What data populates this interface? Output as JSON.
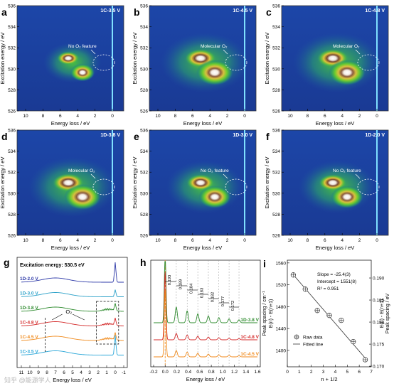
{
  "maps": [
    {
      "letter": "a",
      "title": "1C-3.5 V",
      "annotation": "No O₂ feature",
      "intensity": "weak"
    },
    {
      "letter": "b",
      "title": "1C-4.5 V",
      "annotation": "Molecular O₂",
      "intensity": "strong"
    },
    {
      "letter": "c",
      "title": "1C-4.8 V",
      "annotation": "Molecular O₂",
      "intensity": "strong"
    },
    {
      "letter": "d",
      "title": "1D-3.8 V",
      "annotation": "Molecular  O₂",
      "intensity": "strong"
    },
    {
      "letter": "e",
      "title": "1D-3.0 V",
      "annotation": "No O₂ feature",
      "intensity": "medium"
    },
    {
      "letter": "f",
      "title": "1D-2.0 V",
      "annotation": "No O₂ feature",
      "intensity": "medium"
    }
  ],
  "map_axes": {
    "ylabel": "Excitation energy / eV",
    "xlabel": "Energy loss / eV",
    "yticks": [
      "536",
      "534",
      "532",
      "530",
      "528",
      "526"
    ],
    "xticks": [
      "10",
      "8",
      "6",
      "4",
      "2",
      "0"
    ]
  },
  "panel_g": {
    "letter": "g",
    "title": "Excitation energy: 530.5 eV",
    "traces": [
      {
        "label": "1D-2.0 V",
        "color": "#2e3aa8"
      },
      {
        "label": "1D-3.0 V",
        "color": "#2aa0c8"
      },
      {
        "label": "1D-3.8 V",
        "color": "#2e8b2e"
      },
      {
        "label": "1C-4.8 V",
        "color": "#d42a2a"
      },
      {
        "label": "1C-4.5 V",
        "color": "#f08a1c"
      },
      {
        "label": "1C-3.5 V",
        "color": "#29a6d8"
      }
    ],
    "annotation": "O₂",
    "xlabel": "Energy loss / eV",
    "xticks": [
      "11",
      "10",
      "9",
      "8",
      "7",
      "6",
      "5",
      "4",
      "3",
      "2",
      "1",
      "0",
      "-1"
    ]
  },
  "panel_h": {
    "letter": "h",
    "traces": [
      {
        "label": "1D-3.8 V",
        "color": "#2e8b2e"
      },
      {
        "label": "1C-4.8 V",
        "color": "#d42a2a"
      },
      {
        "label": "1C-4.5 V",
        "color": "#f08a1c"
      }
    ],
    "spacings": [
      "0.193",
      "0.189",
      "0.184",
      "0.183",
      "0.182",
      "0.177",
      "0.172"
    ],
    "xlabel": "Energy loss / eV",
    "xticks": [
      "-0.2",
      "0.0",
      "0.2",
      "0.4",
      "0.6",
      "0.8",
      "1.0",
      "1.2",
      "1.4",
      "1.6"
    ]
  },
  "panel_i": {
    "letter": "i",
    "ylabel_left": "Peak spacing / cm⁻¹",
    "ylabel_left2": "E(n) - E(n+1)",
    "ylabel_right": "Peak spacing / eV",
    "ylabel_right2": "E(n) - E(n+1)",
    "xlabel": "n + 1/2",
    "slope": "Slope = -25.4(3)",
    "intercept": "Intercept = 1551(8)",
    "r2": "R² = 0.951",
    "legend_raw": "Raw data",
    "legend_fit": "Fitted line",
    "xticks": [
      "0",
      "1",
      "2",
      "3",
      "4",
      "5",
      "6",
      "7"
    ],
    "yticks_left": [
      "1560",
      "1520",
      "1480",
      "1440",
      "1400"
    ],
    "yticks_right": [
      "0.195",
      "0.190",
      "0.185",
      "0.180",
      "0.175",
      "0.170"
    ]
  },
  "chart_data": {
    "type": "scatter",
    "x": [
      0.5,
      1.5,
      2.5,
      3.5,
      4.5,
      5.5,
      6.5
    ],
    "series": [
      {
        "name": "Raw data",
        "values": [
          1538,
          1512,
          1473,
          1464,
          1455,
          1416,
          1383
        ]
      },
      {
        "name": "Fitted line",
        "values": [
          1538.3,
          1512.9,
          1487.5,
          1462.1,
          1436.7,
          1411.3,
          1385.9
        ]
      }
    ],
    "xlabel": "n + 1/2",
    "ylabel": "Peak spacing / cm⁻¹ E(n) - E(n+1)",
    "xlim": [
      0,
      7
    ],
    "ylim": [
      1370,
      1565
    ]
  },
  "watermark": "知乎 @能源学人"
}
